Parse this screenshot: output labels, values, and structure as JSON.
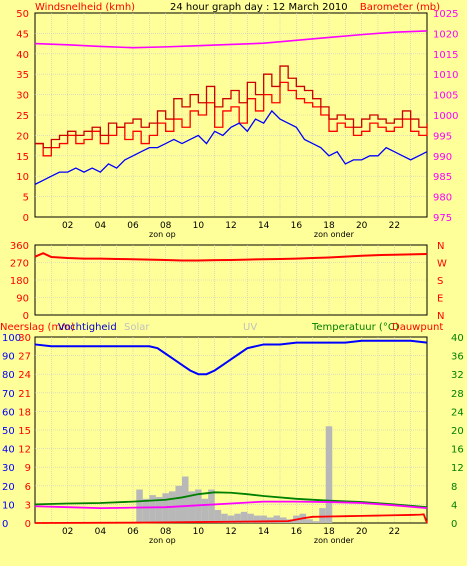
{
  "title": "24 hour graph day : 12 March 2010",
  "colors": {
    "bg": "#ffff99",
    "grid": "#c8c8c8",
    "red": "#ff0000",
    "darkred": "#cc0000",
    "blue": "#0000ff",
    "magenta": "#ff00ff",
    "green": "#008000",
    "gray": "#b8b8b8",
    "labelgray": "#c0c0c0"
  },
  "chart_data": [
    {
      "type": "line",
      "panel": "wind",
      "left_label": "Windsnelheid (kmh)",
      "right_label": "Barometer (mb)",
      "left_ticks": [
        "0",
        "5",
        "10",
        "15",
        "20",
        "25",
        "30",
        "35",
        "40",
        "45",
        "50"
      ],
      "right_ticks": [
        "975",
        "980",
        "985",
        "990",
        "995",
        "1000",
        "1005",
        "1010",
        "1015",
        "1020",
        "1025"
      ],
      "ylim": [
        0,
        50
      ],
      "y2lim": [
        975,
        1025
      ],
      "x_ticks": [
        "02",
        "04",
        "06",
        "08",
        "10",
        "12",
        "14",
        "16",
        "18",
        "20",
        "22"
      ],
      "x_sub_labels": [
        {
          "at": 7.8,
          "text": "zon op"
        },
        {
          "at": 18.3,
          "text": "zon onder"
        }
      ],
      "series": [
        {
          "name": "Windsnelheid (kmh)",
          "axis": "left",
          "color": "#ff0000",
          "step": true,
          "x": [
            0,
            0.5,
            1,
            1.5,
            2,
            2.5,
            3,
            3.5,
            4,
            4.5,
            5,
            5.5,
            6,
            6.5,
            7,
            7.5,
            8,
            8.5,
            9,
            9.5,
            10,
            10.5,
            11,
            11.5,
            12,
            12.5,
            13,
            13.5,
            14,
            14.5,
            15,
            15.5,
            16,
            16.5,
            17,
            17.5,
            18,
            18.5,
            19,
            19.5,
            20,
            20.5,
            21,
            21.5,
            22,
            22.5,
            23,
            23.5,
            24
          ],
          "values": [
            18,
            15,
            17,
            18,
            20,
            18,
            19,
            21,
            18,
            20,
            22,
            19,
            21,
            18,
            20,
            23,
            21,
            24,
            22,
            26,
            25,
            28,
            22,
            26,
            27,
            23,
            29,
            26,
            30,
            28,
            33,
            31,
            29,
            28,
            27,
            25,
            21,
            23,
            22,
            20,
            21,
            23,
            22,
            21,
            22,
            24,
            21,
            20,
            22
          ]
        },
        {
          "name": "gust",
          "axis": "left",
          "color": "#cc0000",
          "step": true,
          "spiky": true,
          "x": [
            0,
            0.5,
            1,
            1.5,
            2,
            2.5,
            3,
            3.5,
            4,
            4.5,
            5,
            5.5,
            6,
            6.5,
            7,
            7.5,
            8,
            8.5,
            9,
            9.5,
            10,
            10.5,
            11,
            11.5,
            12,
            12.5,
            13,
            13.5,
            14,
            14.5,
            15,
            15.5,
            16,
            16.5,
            17,
            17.5,
            18,
            18.5,
            19,
            19.5,
            20,
            20.5,
            21,
            21.5,
            22,
            22.5,
            23,
            23.5,
            24
          ],
          "values": [
            18,
            17,
            19,
            20,
            21,
            20,
            21,
            22,
            20,
            23,
            22,
            23,
            24,
            22,
            23,
            26,
            24,
            29,
            27,
            30,
            28,
            32,
            27,
            29,
            31,
            28,
            33,
            30,
            35,
            32,
            37,
            34,
            32,
            31,
            29,
            27,
            24,
            25,
            24,
            22,
            24,
            25,
            24,
            23,
            24,
            26,
            24,
            22,
            23
          ]
        },
        {
          "name": "Windsnelheid avg",
          "axis": "left",
          "color": "#0000ff",
          "x": [
            0,
            0.5,
            1,
            1.5,
            2,
            2.5,
            3,
            3.5,
            4,
            4.5,
            5,
            5.5,
            6,
            6.5,
            7,
            7.5,
            8,
            8.5,
            9,
            9.5,
            10,
            10.5,
            11,
            11.5,
            12,
            12.5,
            13,
            13.5,
            14,
            14.5,
            15,
            15.5,
            16,
            16.5,
            17,
            17.5,
            18,
            18.5,
            19,
            19.5,
            20,
            20.5,
            21,
            21.5,
            22,
            22.5,
            23,
            23.5,
            24
          ],
          "values": [
            8,
            9,
            10,
            11,
            11,
            12,
            11,
            12,
            11,
            13,
            12,
            14,
            15,
            16,
            17,
            17,
            18,
            19,
            18,
            19,
            20,
            18,
            21,
            20,
            22,
            23,
            21,
            24,
            23,
            26,
            24,
            23,
            22,
            19,
            18,
            17,
            15,
            16,
            13,
            14,
            14,
            15,
            15,
            17,
            16,
            15,
            14,
            15,
            16
          ]
        },
        {
          "name": "Barometer (mb)",
          "axis": "right",
          "color": "#ff00ff",
          "x": [
            0,
            2,
            4,
            6,
            8,
            10,
            12,
            14,
            16,
            18,
            20,
            22,
            24
          ],
          "values": [
            1017.5,
            1017.2,
            1016.8,
            1016.5,
            1016.7,
            1017.0,
            1017.3,
            1017.6,
            1018.3,
            1019.0,
            1019.7,
            1020.3,
            1020.6
          ]
        }
      ]
    },
    {
      "type": "line",
      "panel": "direction",
      "left_ticks": [
        "0",
        "90",
        "180",
        "270",
        "360"
      ],
      "right_labels": [
        "N",
        "W",
        "S",
        "E",
        "N"
      ],
      "ylim": [
        0,
        360
      ],
      "series": [
        {
          "name": "Windrichting",
          "color": "#ff0000",
          "x": [
            0,
            0.5,
            1,
            2,
            3,
            4,
            5,
            6,
            7,
            8,
            9,
            10,
            11,
            12,
            13,
            14,
            15,
            16,
            17,
            18,
            19,
            20,
            21,
            22,
            23,
            24
          ],
          "values": [
            300,
            318,
            298,
            293,
            290,
            290,
            288,
            287,
            285,
            283,
            280,
            280,
            282,
            283,
            285,
            287,
            288,
            290,
            293,
            296,
            300,
            305,
            308,
            310,
            312,
            314
          ]
        }
      ]
    },
    {
      "type": "line",
      "panel": "rain-humidity-temp",
      "left_label_1": "Neerslag (mm)",
      "left_label_2": "Vochtigheid",
      "solar_label": "Solar",
      "uv_label": "UV",
      "right_label_1": "Temperatuur (°C)",
      "right_label_2": "Dauwpunt",
      "rain_ticks": [
        "0",
        "3",
        "6",
        "9",
        "12",
        "15",
        "18",
        "21",
        "24",
        "27",
        "30"
      ],
      "humidity_ticks": [
        "0",
        "10",
        "20",
        "30",
        "40",
        "50",
        "60",
        "70",
        "80",
        "90",
        "100"
      ],
      "temp_ticks": [
        "0",
        "4",
        "8",
        "12",
        "16",
        "20",
        "24",
        "28",
        "32",
        "36",
        "40"
      ],
      "y_rain_lim": [
        0,
        30
      ],
      "y_hum_lim": [
        0,
        100
      ],
      "y_temp_lim": [
        0,
        40
      ],
      "x_ticks": [
        "02",
        "04",
        "06",
        "08",
        "10",
        "12",
        "14",
        "16",
        "18",
        "20",
        "22"
      ],
      "x_sub_labels": [
        {
          "at": 7.8,
          "text": "zon op"
        },
        {
          "at": 18.3,
          "text": "zon onder"
        }
      ],
      "series": [
        {
          "name": "Solar",
          "color": "#b8b8b8",
          "kind": "bars",
          "x": [
            6.4,
            6.8,
            7.2,
            7.6,
            8.0,
            8.4,
            8.8,
            9.2,
            9.6,
            10.0,
            10.4,
            10.8,
            11.2,
            11.6,
            12.0,
            12.4,
            12.8,
            13.2,
            13.6,
            14.0,
            14.4,
            14.8,
            15.2,
            15.6,
            16.0,
            16.4,
            16.8,
            17.2,
            17.6,
            18.0
          ],
          "values": [
            18,
            13,
            15,
            14,
            16,
            17,
            20,
            25,
            17,
            18,
            13,
            18,
            7,
            5,
            4,
            5,
            6,
            5,
            4,
            4,
            3,
            4,
            3,
            2,
            4,
            5,
            2,
            1,
            8,
            52
          ]
        },
        {
          "name": "Vochtigheid",
          "color": "#0000ff",
          "axis": "humidity",
          "x": [
            0,
            1,
            2,
            3,
            4,
            5,
            6,
            7,
            7.5,
            8,
            8.5,
            9,
            9.5,
            10,
            10.5,
            11,
            11.5,
            12,
            12.5,
            13,
            13.5,
            14,
            15,
            16,
            17,
            18,
            19,
            20,
            21,
            22,
            23,
            24
          ],
          "values": [
            96,
            95,
            95,
            95,
            95,
            95,
            95,
            95,
            94,
            91,
            88,
            85,
            82,
            80,
            80,
            82,
            85,
            88,
            91,
            94,
            95,
            96,
            96,
            97,
            97,
            97,
            97,
            98,
            98,
            98,
            98,
            97
          ]
        },
        {
          "name": "Temperatuur (°C)",
          "color": "#008000",
          "axis": "temp",
          "x": [
            0,
            2,
            4,
            6,
            8,
            9,
            10,
            11,
            12,
            13,
            14,
            16,
            18,
            20,
            22,
            24
          ],
          "values": [
            4,
            4.2,
            4.3,
            4.6,
            5,
            5.5,
            6.2,
            6.6,
            6.5,
            6.2,
            5.8,
            5.2,
            4.8,
            4.5,
            4,
            3.4
          ]
        },
        {
          "name": "Dauwpunt",
          "color": "#ff00ff",
          "axis": "temp",
          "x": [
            0,
            2,
            4,
            6,
            8,
            10,
            12,
            14,
            16,
            18,
            20,
            22,
            24
          ],
          "values": [
            3.6,
            3.4,
            3.2,
            3.3,
            3.4,
            3.8,
            4.2,
            4.6,
            4.6,
            4.5,
            4.3,
            3.8,
            3.2
          ]
        },
        {
          "name": "Neerslag (mm)",
          "color": "#ff0000",
          "axis": "rain",
          "x": [
            0,
            6,
            8,
            10,
            12,
            14,
            15.5,
            16.5,
            17,
            18,
            19,
            20,
            21,
            22,
            23,
            23.6,
            23.8,
            24
          ],
          "values": [
            0,
            0.05,
            0.1,
            0.15,
            0.2,
            0.25,
            0.3,
            0.8,
            1.0,
            1.05,
            1.1,
            1.15,
            1.2,
            1.25,
            1.3,
            1.35,
            1.4,
            0
          ]
        }
      ]
    }
  ]
}
